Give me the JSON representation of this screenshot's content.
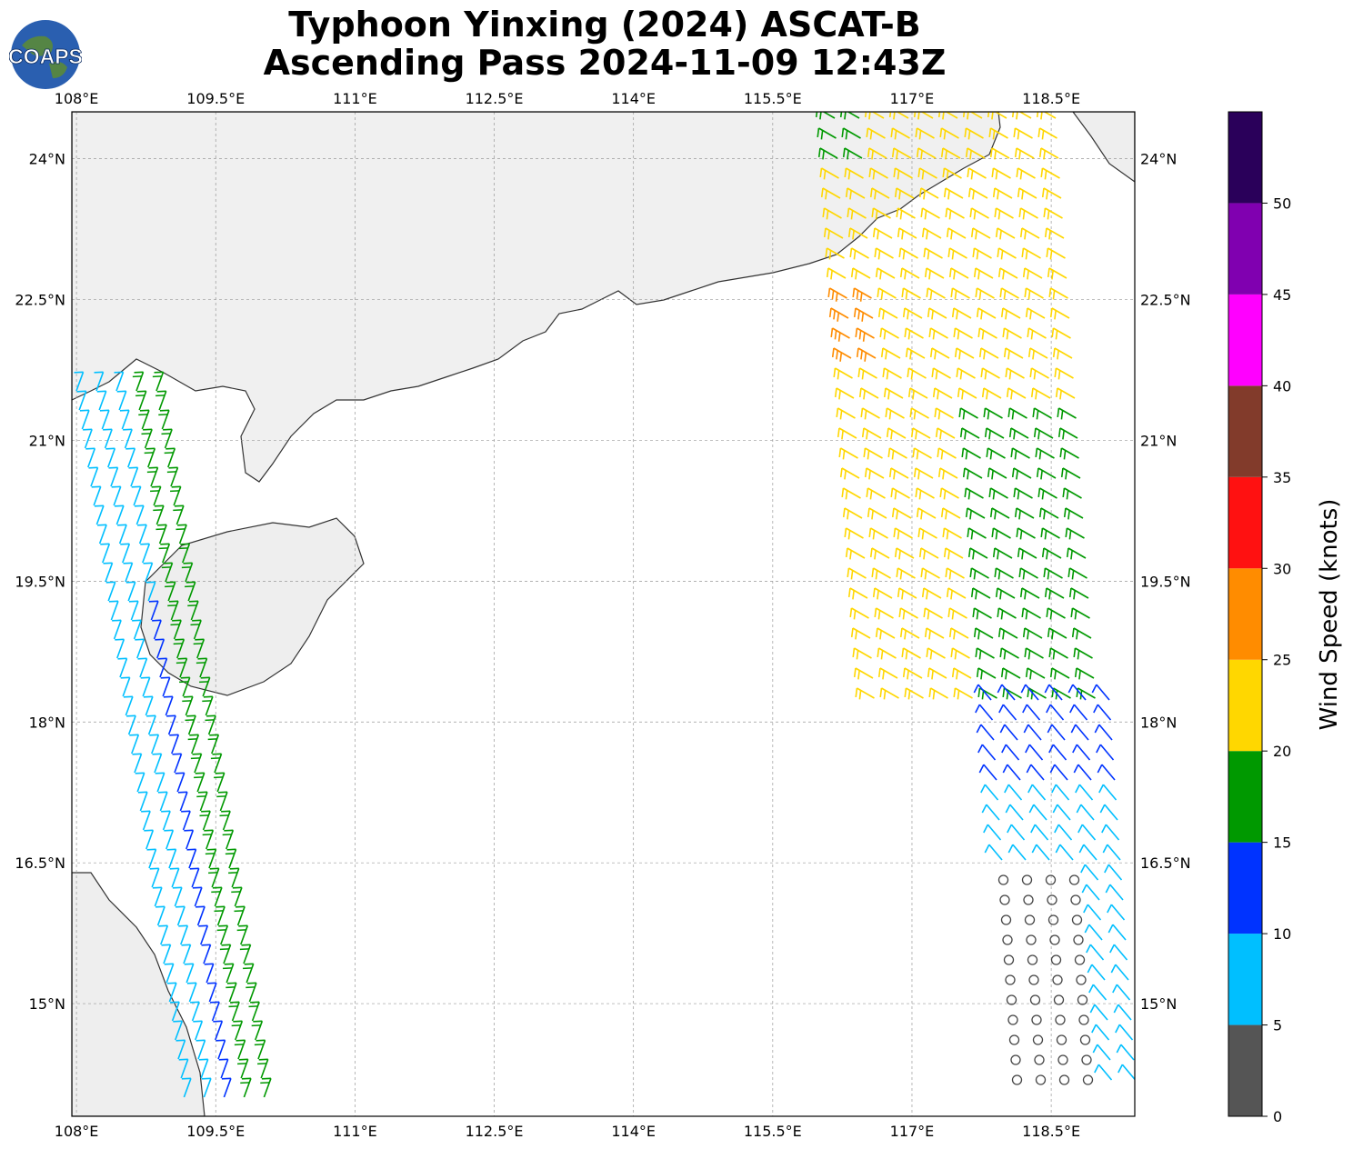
{
  "title": {
    "line1": "Typhoon Yinxing (2024) ASCAT-B",
    "line2": "Ascending Pass 2024-11-09 12:43Z"
  },
  "logo": {
    "text": "COAPS",
    "icon": "globe-logo-icon"
  },
  "map": {
    "lon_range": [
      107.95,
      119.4
    ],
    "lat_range": [
      13.8,
      24.5
    ],
    "lon_ticks": [
      "108°E",
      "109.5°E",
      "111°E",
      "112.5°E",
      "114°E",
      "115.5°E",
      "117°E",
      "118.5°E"
    ],
    "lat_ticks": [
      "24°N",
      "22.5°N",
      "21°N",
      "19.5°N",
      "18°N",
      "16.5°N",
      "15°N"
    ],
    "gridlines": true,
    "land_color": "#f2f2f2",
    "coast_color": "#333333"
  },
  "colorbar": {
    "label": "Wind Speed (knots)",
    "ticks": [
      "0",
      "5",
      "10",
      "15",
      "20",
      "25",
      "30",
      "35",
      "40",
      "45",
      "50"
    ],
    "colors": [
      "#555555",
      "#00bfff",
      "#0033ff",
      "#009900",
      "#ffd700",
      "#ff8c00",
      "#ff1111",
      "#823b2b",
      "#ff00ff",
      "#8000b0",
      "#2a005a"
    ]
  }
}
